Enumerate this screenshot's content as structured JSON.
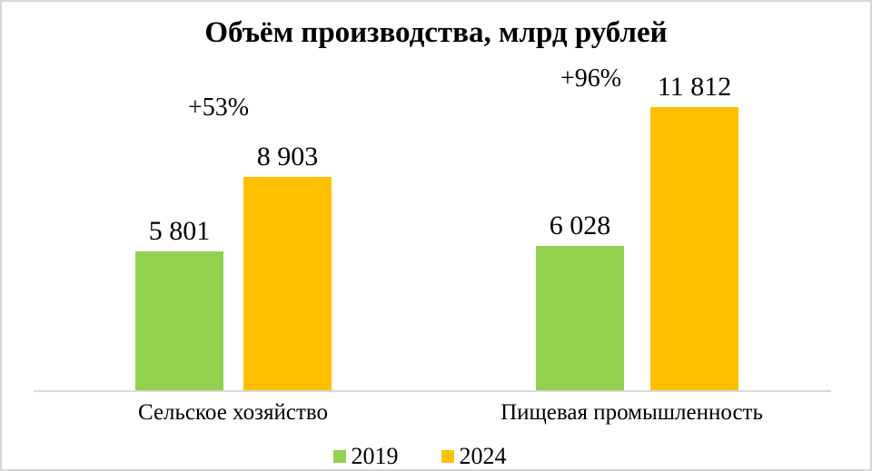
{
  "chart_data": {
    "type": "bar",
    "title": "Объём производства, млрд рублей",
    "categories": [
      "Сельское хозяйство",
      "Пищевая промышленность"
    ],
    "series": [
      {
        "name": "2019",
        "color": "#92D050",
        "values": [
          5801,
          6028
        ],
        "value_labels": [
          "5 801",
          "6 028"
        ]
      },
      {
        "name": "2024",
        "color": "#FFC000",
        "values": [
          8903,
          11812
        ],
        "value_labels": [
          "8 903",
          "11 812"
        ]
      }
    ],
    "annotations": [
      {
        "text": "+53%",
        "category_index": 0
      },
      {
        "text": "+96%",
        "category_index": 1
      }
    ],
    "xlabel": "",
    "ylabel": "",
    "ylim": [
      0,
      11812
    ],
    "grid": false,
    "legend_position": "bottom",
    "axis_color": "#D9D9D9"
  }
}
